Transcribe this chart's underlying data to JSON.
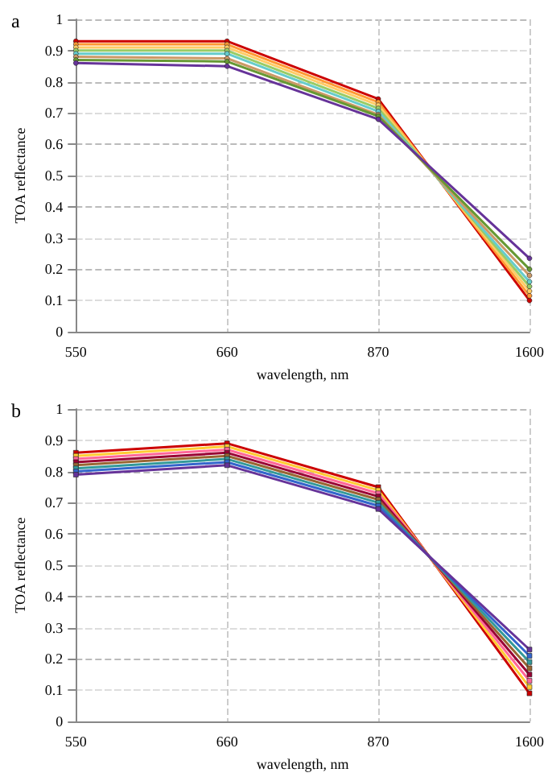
{
  "chart_data": [
    {
      "type": "line",
      "title": "a",
      "xlabel": "wavelength, nm",
      "ylabel": "TOA reflectance",
      "categories": [
        "550",
        "660",
        "870",
        "1600"
      ],
      "ylim": [
        0,
        1
      ],
      "yticks": [
        0,
        0.1,
        0.2,
        0.3,
        0.4,
        0.5,
        0.6,
        0.7,
        0.8,
        0.9,
        1
      ],
      "grid": true,
      "marker": "circle",
      "line_style": "solid",
      "series": [
        {
          "color": "#cc0000",
          "values": [
            0.93,
            0.93,
            0.745,
            0.1
          ]
        },
        {
          "color": "#ff9933",
          "values": [
            0.92,
            0.92,
            0.735,
            0.115
          ]
        },
        {
          "color": "#ffcc66",
          "values": [
            0.91,
            0.91,
            0.725,
            0.13
          ]
        },
        {
          "color": "#99cc66",
          "values": [
            0.9,
            0.9,
            0.715,
            0.145
          ]
        },
        {
          "color": "#66cccc",
          "values": [
            0.89,
            0.89,
            0.705,
            0.16
          ]
        },
        {
          "color": "#cc9966",
          "values": [
            0.88,
            0.875,
            0.695,
            0.18
          ]
        },
        {
          "color": "#669933",
          "values": [
            0.87,
            0.865,
            0.69,
            0.2
          ]
        },
        {
          "color": "#663399",
          "values": [
            0.86,
            0.85,
            0.68,
            0.235
          ]
        }
      ]
    },
    {
      "type": "line",
      "title": "b",
      "xlabel": "wavelength, nm",
      "ylabel": "TOA reflectance",
      "categories": [
        "550",
        "660",
        "870",
        "1600"
      ],
      "ylim": [
        0,
        1
      ],
      "yticks": [
        0,
        0.1,
        0.2,
        0.3,
        0.4,
        0.5,
        0.6,
        0.7,
        0.8,
        0.9,
        1
      ],
      "grid": true,
      "marker": "square",
      "line_style": "solid",
      "series": [
        {
          "color": "#cc0000",
          "values": [
            0.86,
            0.89,
            0.75,
            0.09
          ]
        },
        {
          "color": "#ffcc33",
          "values": [
            0.85,
            0.88,
            0.74,
            0.11
          ]
        },
        {
          "color": "#ff6699",
          "values": [
            0.84,
            0.87,
            0.73,
            0.13
          ]
        },
        {
          "color": "#990033",
          "values": [
            0.83,
            0.86,
            0.72,
            0.15
          ]
        },
        {
          "color": "#996633",
          "values": [
            0.82,
            0.85,
            0.71,
            0.17
          ]
        },
        {
          "color": "#339999",
          "values": [
            0.81,
            0.84,
            0.7,
            0.19
          ]
        },
        {
          "color": "#3366cc",
          "values": [
            0.8,
            0.83,
            0.69,
            0.21
          ]
        },
        {
          "color": "#663399",
          "values": [
            0.79,
            0.82,
            0.68,
            0.23
          ]
        }
      ]
    }
  ]
}
